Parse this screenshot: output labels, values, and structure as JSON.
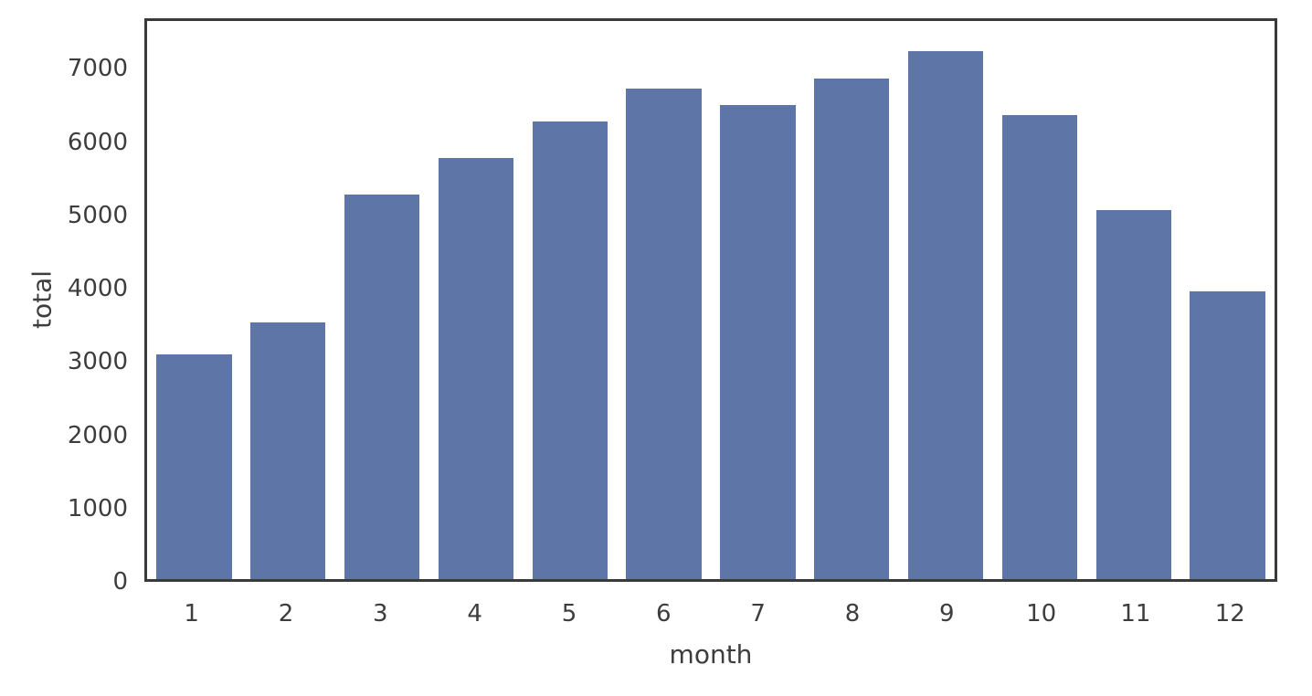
{
  "chart_data": {
    "type": "bar",
    "title": "",
    "xlabel": "month",
    "ylabel": "total",
    "categories": [
      "1",
      "2",
      "3",
      "4",
      "5",
      "6",
      "7",
      "8",
      "9",
      "10",
      "11",
      "12"
    ],
    "values": [
      3100,
      3540,
      5300,
      5800,
      6300,
      6760,
      6530,
      6900,
      7280,
      6400,
      5090,
      3960
    ],
    "yticks": [
      0,
      1000,
      2000,
      3000,
      4000,
      5000,
      6000,
      7000
    ],
    "ylim": [
      0,
      7690
    ],
    "grid": false,
    "legend": "none",
    "bar_width_fraction": 0.8,
    "colors": {
      "bar": "#5d76a7",
      "spines": "#3a3a3a",
      "tick_text": "#3d3d3d",
      "background": "#ffffff"
    }
  }
}
